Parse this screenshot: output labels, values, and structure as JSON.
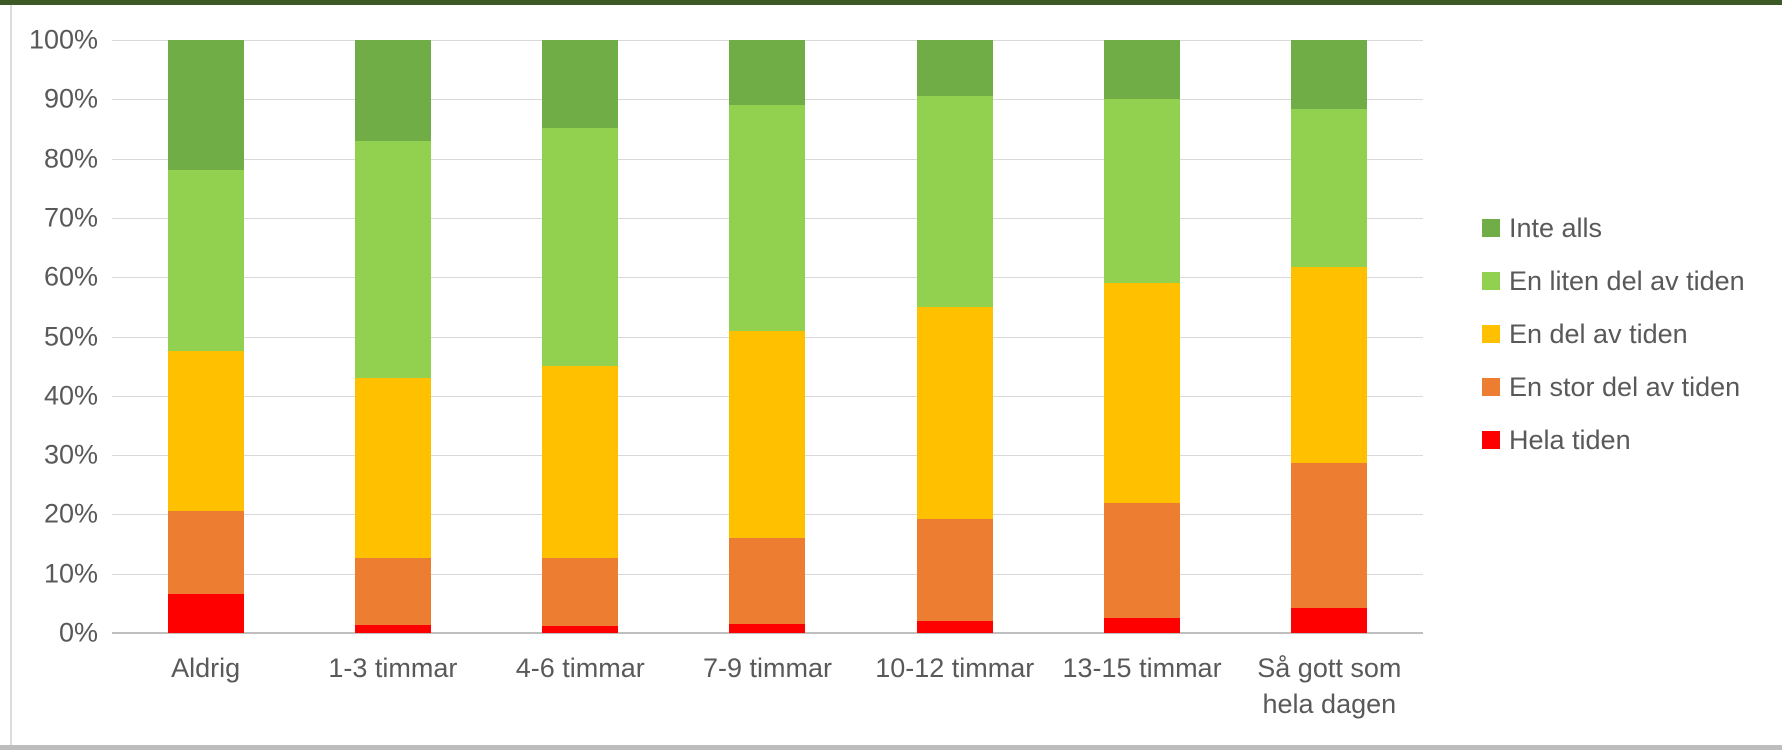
{
  "chart_data": {
    "type": "bar",
    "stacked": true,
    "percent_stacked": true,
    "title": "",
    "xlabel": "",
    "ylabel": "",
    "ylim": [
      0,
      100
    ],
    "grid": true,
    "yticks": [
      0,
      10,
      20,
      30,
      40,
      50,
      60,
      70,
      80,
      90,
      100
    ],
    "ytick_suffix": "%",
    "categories": [
      "Aldrig",
      "1-3 timmar",
      "4-6 timmar",
      "7-9 timmar",
      "10-12 timmar",
      "13-15 timmar",
      "Så gott som hela dagen"
    ],
    "series": [
      {
        "name": "Hela tiden",
        "color": "#FF0000",
        "values": [
          6.5,
          1.4,
          1.1,
          1.5,
          2.0,
          2.6,
          4.3
        ]
      },
      {
        "name": "En stor del av tiden",
        "color": "#ED7D31",
        "values": [
          14.0,
          11.3,
          11.5,
          14.5,
          17.3,
          19.4,
          24.3
        ]
      },
      {
        "name": "En del av tiden",
        "color": "#FFC000",
        "values": [
          27.0,
          30.3,
          32.4,
          35.0,
          35.7,
          37.0,
          33.1
        ]
      },
      {
        "name": "En liten del av tiden",
        "color": "#92D050",
        "values": [
          30.5,
          40.0,
          40.2,
          38.0,
          35.5,
          31.0,
          26.6
        ]
      },
      {
        "name": "Inte alls",
        "color": "#70AD47",
        "values": [
          22.0,
          17.0,
          14.8,
          11.0,
          9.5,
          10.0,
          11.7
        ]
      }
    ],
    "legend": {
      "position": "right",
      "entries": [
        {
          "label": "Inte alls",
          "color": "#70AD47"
        },
        {
          "label": "En liten del av tiden",
          "color": "#92D050"
        },
        {
          "label": "En del av tiden",
          "color": "#FFC000"
        },
        {
          "label": "En stor del av tiden",
          "color": "#ED7D31"
        },
        {
          "label": "Hela tiden",
          "color": "#FF0000"
        }
      ]
    },
    "colors": {
      "gridline": "#d9d9d9",
      "axis_line": "#bfbfbf",
      "tick_text": "#595959"
    }
  }
}
